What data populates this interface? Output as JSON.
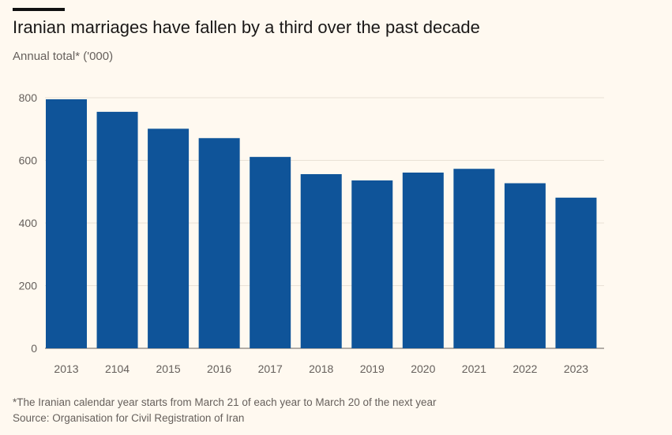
{
  "header": {
    "title": "Iranian marriages have fallen by a third over the past decade",
    "subtitle": "Annual total* ('000)"
  },
  "footer": {
    "footnote": "*The Iranian calendar year starts from March 21 of each year to March 20 of the next year",
    "source": "Source: Organisation for Civil Registration of Iran"
  },
  "colors": {
    "bar": "#0f5499",
    "grid": "#e9e1d6",
    "axis": "#66605c",
    "background": "#fff9f0"
  },
  "chart_data": {
    "type": "bar",
    "title": "Iranian marriages have fallen by a third over the past decade",
    "ylabel": "Annual total* ('000)",
    "xlabel": "",
    "categories": [
      "2013",
      "2104",
      "2015",
      "2016",
      "2017",
      "2018",
      "2019",
      "2020",
      "2021",
      "2022",
      "2023"
    ],
    "values": [
      795,
      755,
      701,
      671,
      611,
      556,
      536,
      561,
      573,
      527,
      481
    ],
    "ylim": [
      0,
      800
    ],
    "yticks": [
      0,
      200,
      400,
      600,
      800
    ],
    "grid": true,
    "legend": "none"
  }
}
